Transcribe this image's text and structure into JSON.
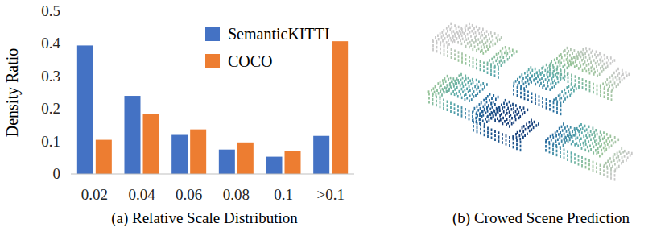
{
  "chart_data": {
    "type": "bar",
    "x_label": "(a) Relative Scale Distribution",
    "y_label": "Density Ratio",
    "categories": [
      "0.02",
      "0.04",
      "0.06",
      "0.08",
      "0.1",
      ">0.1"
    ],
    "series": [
      {
        "name": "SemanticKITTI",
        "color": "#4472c4",
        "values": [
          0.395,
          0.24,
          0.12,
          0.075,
          0.053,
          0.117
        ]
      },
      {
        "name": "COCO",
        "color": "#ed7d31",
        "values": [
          0.105,
          0.185,
          0.137,
          0.097,
          0.07,
          0.408
        ]
      }
    ],
    "ylim": [
      0,
      0.5
    ],
    "yticks": [
      0,
      0.1,
      0.2,
      0.3,
      0.4,
      0.5
    ],
    "grid": false,
    "legend": "upper right"
  },
  "panel_b": {
    "caption": "(b) Crowed Scene Prediction"
  }
}
